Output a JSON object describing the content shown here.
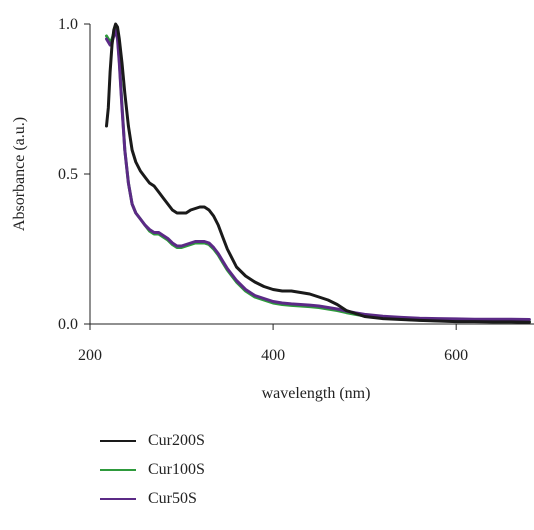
{
  "chart_data": {
    "type": "line",
    "title": "",
    "xlabel": "wavelength (nm)",
    "ylabel": "Absorbance (a.u.)",
    "xlim": [
      200,
      685
    ],
    "ylim": [
      0,
      1.0
    ],
    "xticks": [
      200,
      400,
      600
    ],
    "xtick_labels": [
      "200",
      "400",
      "600"
    ],
    "yticks": [
      0,
      0.5,
      1.0
    ],
    "ytick_labels": [
      "0.0",
      "0.5",
      "1.0"
    ],
    "grid": false,
    "legend_position": "bottom",
    "series": [
      {
        "name": "Cur200S",
        "color": "#1a1a1a",
        "x": [
          218,
          220,
          222,
          224,
          226,
          228,
          230,
          232,
          235,
          238,
          242,
          246,
          250,
          255,
          260,
          265,
          270,
          275,
          280,
          285,
          290,
          295,
          300,
          305,
          310,
          315,
          320,
          325,
          330,
          335,
          340,
          345,
          350,
          360,
          370,
          380,
          390,
          400,
          410,
          420,
          430,
          440,
          450,
          460,
          470,
          480,
          490,
          500,
          520,
          540,
          560,
          580,
          600,
          620,
          640,
          660,
          680
        ],
        "y": [
          0.66,
          0.72,
          0.84,
          0.93,
          0.98,
          1.0,
          0.99,
          0.95,
          0.87,
          0.77,
          0.66,
          0.58,
          0.54,
          0.51,
          0.49,
          0.47,
          0.46,
          0.44,
          0.42,
          0.4,
          0.38,
          0.37,
          0.37,
          0.37,
          0.38,
          0.385,
          0.39,
          0.39,
          0.38,
          0.36,
          0.33,
          0.29,
          0.25,
          0.19,
          0.16,
          0.14,
          0.125,
          0.115,
          0.11,
          0.11,
          0.105,
          0.1,
          0.09,
          0.08,
          0.065,
          0.045,
          0.035,
          0.025,
          0.018,
          0.015,
          0.012,
          0.01,
          0.008,
          0.008,
          0.007,
          0.007,
          0.006
        ]
      },
      {
        "name": "Cur100S",
        "color": "#2e9a3c",
        "x": [
          218,
          220,
          222,
          224,
          226,
          228,
          230,
          232,
          235,
          238,
          242,
          246,
          250,
          255,
          260,
          265,
          270,
          275,
          280,
          285,
          290,
          295,
          300,
          305,
          310,
          315,
          320,
          325,
          330,
          335,
          340,
          345,
          350,
          360,
          370,
          380,
          390,
          400,
          410,
          420,
          430,
          440,
          450,
          460,
          470,
          480,
          490,
          500,
          520,
          540,
          560,
          580,
          600,
          620,
          640,
          660,
          680
        ],
        "y": [
          0.96,
          0.95,
          0.94,
          0.95,
          0.97,
          0.99,
          0.96,
          0.88,
          0.73,
          0.58,
          0.47,
          0.4,
          0.37,
          0.35,
          0.33,
          0.31,
          0.3,
          0.3,
          0.29,
          0.28,
          0.265,
          0.255,
          0.255,
          0.26,
          0.265,
          0.27,
          0.27,
          0.27,
          0.265,
          0.25,
          0.23,
          0.205,
          0.18,
          0.14,
          0.11,
          0.09,
          0.08,
          0.07,
          0.065,
          0.062,
          0.06,
          0.058,
          0.055,
          0.05,
          0.045,
          0.038,
          0.032,
          0.027,
          0.02,
          0.016,
          0.013,
          0.011,
          0.01,
          0.009,
          0.008,
          0.008,
          0.008
        ]
      },
      {
        "name": "Cur50S",
        "color": "#5b2a86",
        "x": [
          218,
          220,
          222,
          224,
          226,
          228,
          230,
          232,
          235,
          238,
          242,
          246,
          250,
          255,
          260,
          265,
          270,
          275,
          280,
          285,
          290,
          295,
          300,
          305,
          310,
          315,
          320,
          325,
          330,
          335,
          340,
          345,
          350,
          360,
          370,
          380,
          390,
          400,
          410,
          420,
          430,
          440,
          450,
          460,
          470,
          480,
          490,
          500,
          520,
          540,
          560,
          580,
          600,
          620,
          640,
          660,
          680
        ],
        "y": [
          0.95,
          0.94,
          0.93,
          0.94,
          0.96,
          0.98,
          0.95,
          0.87,
          0.72,
          0.58,
          0.47,
          0.4,
          0.37,
          0.35,
          0.33,
          0.315,
          0.305,
          0.305,
          0.295,
          0.285,
          0.27,
          0.26,
          0.26,
          0.265,
          0.27,
          0.275,
          0.275,
          0.275,
          0.27,
          0.255,
          0.235,
          0.21,
          0.185,
          0.145,
          0.115,
          0.095,
          0.085,
          0.075,
          0.07,
          0.067,
          0.065,
          0.063,
          0.06,
          0.055,
          0.05,
          0.043,
          0.037,
          0.032,
          0.026,
          0.022,
          0.019,
          0.018,
          0.017,
          0.016,
          0.016,
          0.016,
          0.015
        ]
      }
    ]
  }
}
